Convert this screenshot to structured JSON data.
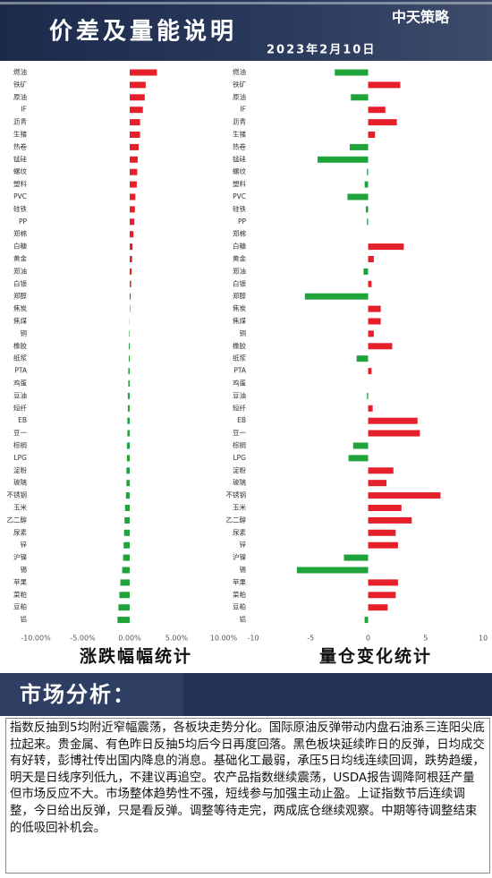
{
  "header": {
    "title": "价差及量能说明",
    "date": "2023年2月10日",
    "logo": "中天策略"
  },
  "chart_data": [
    {
      "type": "barh",
      "title": "涨跌幅幅统计",
      "categories": [
        "燃油",
        "铁矿",
        "原油",
        "IF",
        "沥青",
        "生猪",
        "热卷",
        "锰硅",
        "螺纹",
        "塑料",
        "PVC",
        "硅铁",
        "PP",
        "郑棉",
        "白糖",
        "黄金",
        "郑油",
        "白银",
        "郑醇",
        "焦炭",
        "焦煤",
        "铜",
        "橡胶",
        "纸浆",
        "PTA",
        "鸡蛋",
        "豆油",
        "短纤",
        "EB",
        "豆一",
        "棕榈",
        "LPG",
        "淀粉",
        "玻璃",
        "不锈钢",
        "玉米",
        "乙二醇",
        "尿素",
        "锌",
        "沪镍",
        "锡",
        "苹果",
        "菜粕",
        "豆粕",
        "铝"
      ],
      "values": [
        2.9,
        1.7,
        1.6,
        1.4,
        1.1,
        1.1,
        0.95,
        0.85,
        0.8,
        0.75,
        0.6,
        0.55,
        0.5,
        0.4,
        0.3,
        0.25,
        0.2,
        0.15,
        0.1,
        0.05,
        -0.02,
        -0.05,
        -0.1,
        -0.1,
        -0.15,
        -0.15,
        -0.2,
        -0.2,
        -0.25,
        -0.25,
        -0.3,
        -0.3,
        -0.35,
        -0.35,
        -0.4,
        -0.5,
        -0.55,
        -0.6,
        -0.65,
        -0.7,
        -0.8,
        -1.0,
        -1.1,
        -1.2,
        -1.3
      ],
      "xlim": [
        -10,
        10
      ],
      "xticks": [
        {
          "value": -10,
          "label": "-10.00%"
        },
        {
          "value": -5,
          "label": "-5.00%"
        },
        {
          "value": 0,
          "label": "0.00%"
        },
        {
          "value": 5,
          "label": "5.00%"
        },
        {
          "value": 10,
          "label": "10.00%"
        }
      ],
      "color_up": "#e5202a",
      "color_down": "#1fa33b"
    },
    {
      "type": "barh",
      "title": "量仓变化统计",
      "categories": [
        "燃油",
        "铁矿",
        "原油",
        "IF",
        "沥青",
        "生猪",
        "热卷",
        "锰硅",
        "螺纹",
        "塑料",
        "PVC",
        "硅铁",
        "PP",
        "郑棉",
        "白糖",
        "黄金",
        "郑油",
        "白银",
        "郑醇",
        "焦炭",
        "焦煤",
        "铜",
        "橡胶",
        "纸浆",
        "PTA",
        "鸡蛋",
        "豆油",
        "短纤",
        "EB",
        "豆一",
        "棕榈",
        "LPG",
        "淀粉",
        "玻璃",
        "不锈钢",
        "玉米",
        "乙二醇",
        "尿素",
        "锌",
        "沪镍",
        "锡",
        "苹果",
        "菜粕",
        "豆粕",
        "铝"
      ],
      "values": [
        -2.9,
        2.8,
        -1.5,
        1.5,
        2.5,
        0.6,
        -1.6,
        -4.4,
        -0.1,
        -0.3,
        -1.8,
        -0.2,
        -0.1,
        0,
        3.1,
        0.5,
        -0.4,
        0.3,
        -5.5,
        1.1,
        1.1,
        0.5,
        2.1,
        -1.0,
        0.3,
        0,
        -0.1,
        0.4,
        4.3,
        4.5,
        -1.3,
        -1.7,
        2.2,
        1.6,
        6.3,
        2.9,
        3.8,
        2.4,
        2.6,
        -2.1,
        -6.2,
        2.6,
        2.4,
        1.7,
        -0.3
      ],
      "xlim": [
        -10,
        10
      ],
      "xticks": [
        -10,
        -5,
        0,
        5,
        10
      ],
      "color_up": "#e5202a",
      "color_down": "#1fa33b"
    }
  ],
  "section": {
    "title": "市场分析："
  },
  "analysis": {
    "text": "指数反抽到5均附近窄幅震荡，各板块走势分化。国际原油反弹带动内盘石油系三连阳尖底拉起来。贵金属、有色昨日反抽5均后今日再度回落。黑色板块延续昨日的反弹，日均成交有好转，彭博社传出国内降息的消息。基础化工最弱，承压5日均线连续回调，跌势趋缓，明天是日线序列低九，不建议再追空。农产品指数继续震荡，USDA报告调降阿根廷产量但市场反应不大。市场整体趋势性不强，短线参与加强主动止盈。上证指数节后连续调整，今日给出反弹，只是看反弹。调整等待走完，两成底仓继续观察。中期等待调整结束的低吸回补机会。"
  }
}
